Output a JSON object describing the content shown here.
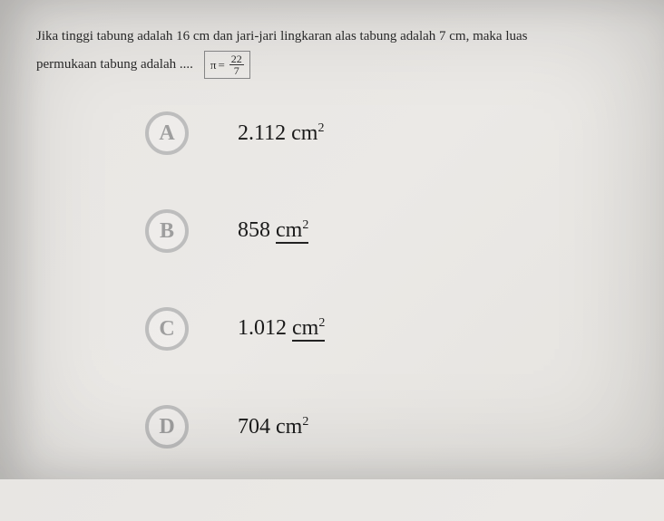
{
  "question": {
    "line1": "Jika tinggi tabung adalah 16 cm dan jari-jari lingkaran alas tabung adalah 7 cm, maka luas",
    "line2_prefix": "permukaan tabung adalah ....",
    "pi_symbol": "π",
    "pi_equals": "=",
    "pi_numerator": "22",
    "pi_denominator": "7"
  },
  "options": [
    {
      "letter": "A",
      "value": "2.112",
      "unit": "cm",
      "exp": "2",
      "underline": false
    },
    {
      "letter": "B",
      "value": "858",
      "unit": "cm",
      "exp": "2",
      "underline": true
    },
    {
      "letter": "C",
      "value": "1.012",
      "unit": "cm",
      "exp": "2",
      "underline": true
    },
    {
      "letter": "D",
      "value": "704",
      "unit": "cm",
      "exp": "2",
      "underline": false
    }
  ],
  "colors": {
    "circle_border": "#bdbdbd",
    "circle_text": "#9e9e9e",
    "body_text": "#1a1a1a",
    "background": "#e8e6e3"
  }
}
